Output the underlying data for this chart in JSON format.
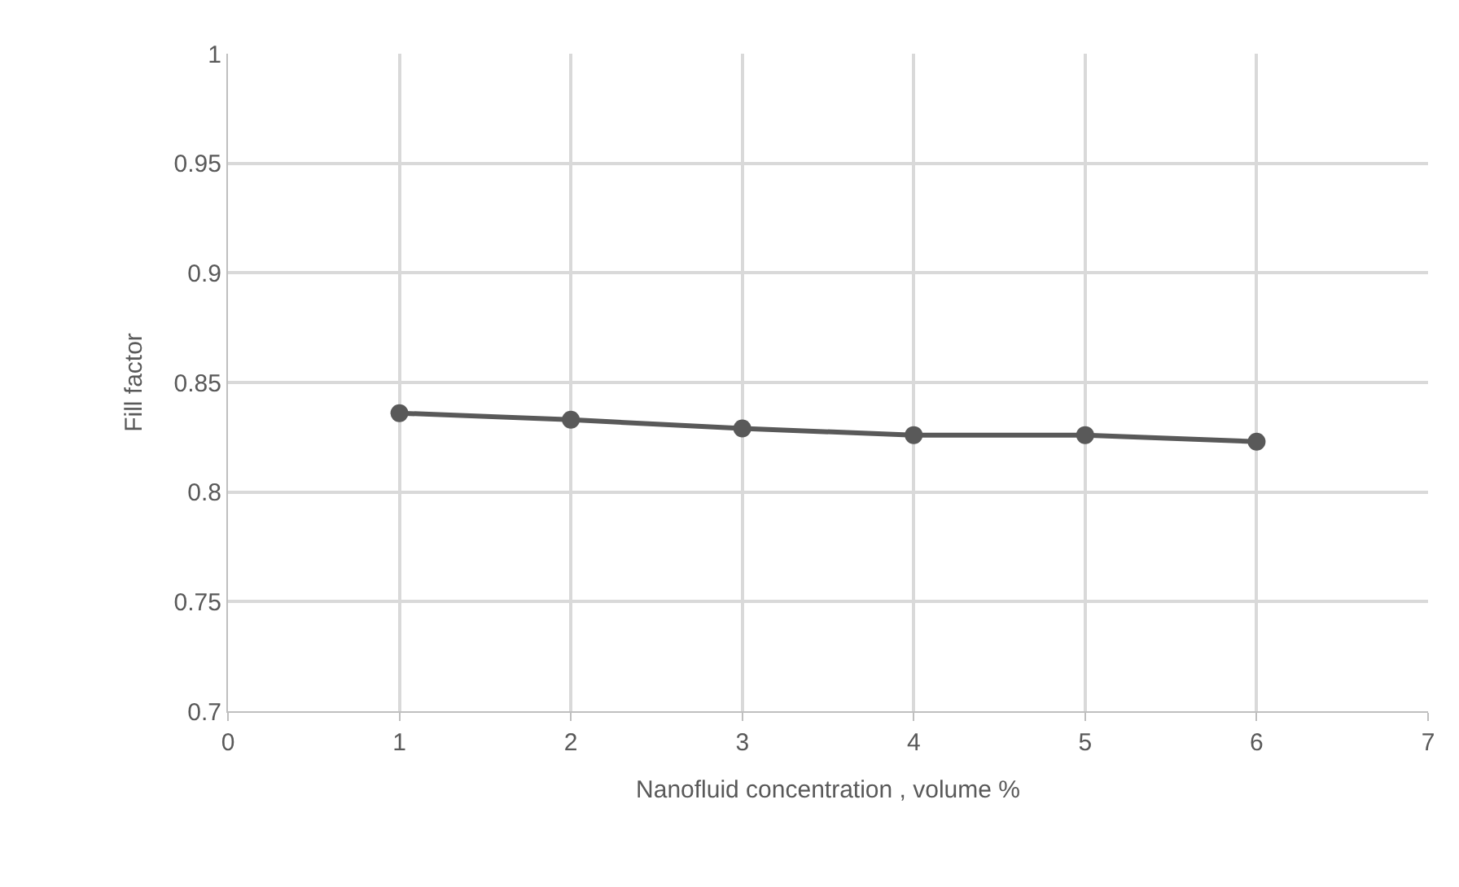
{
  "chart_data": {
    "type": "line",
    "xlabel": "Nanofluid concentration , volume %",
    "ylabel": "Fill factor",
    "x": [
      1,
      2,
      3,
      4,
      5,
      6
    ],
    "series": [
      {
        "color": "#595959",
        "values": [
          0.836,
          0.833,
          0.829,
          0.826,
          0.826,
          0.823
        ]
      }
    ],
    "xlim": [
      0,
      7
    ],
    "xticks": [
      0,
      1,
      2,
      3,
      4,
      5,
      6,
      7
    ],
    "ylim": [
      0.7,
      1
    ],
    "yticks": [
      0.7,
      0.75,
      0.8,
      0.85,
      0.9,
      0.95,
      1
    ],
    "grid": true,
    "marker": "circle",
    "line_style": "solid",
    "legend": false
  }
}
